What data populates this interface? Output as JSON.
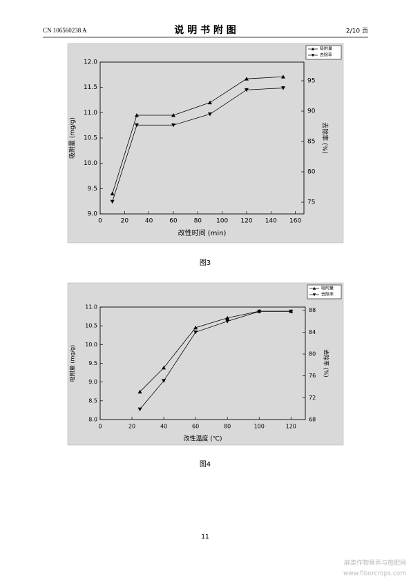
{
  "header": {
    "left": "CN 106560238 A",
    "title": "说 明 书 附 图",
    "right": "2/10 页"
  },
  "footer": {
    "page": "11"
  },
  "watermark": {
    "line1": "麻类作物营养与施肥网",
    "line2": "www.fibercrops.com"
  },
  "chart_data": [
    {
      "type": "line",
      "caption": "图3",
      "x_label": "改性时间 (min)",
      "y_label": "吸附量 (mg/g)",
      "y2_label": "去除率 (%)",
      "x": [
        10,
        30,
        60,
        90,
        120,
        150
      ],
      "xlim": [
        0,
        167
      ],
      "xticks": [
        0,
        20,
        40,
        60,
        80,
        100,
        120,
        140,
        160
      ],
      "ylim": [
        9,
        12
      ],
      "yticks": [
        {
          "value": 9,
          "label": "9.0"
        },
        {
          "value": 9.5,
          "label": "9.5"
        },
        {
          "value": 10,
          "label": "10.0"
        },
        {
          "value": 10.5,
          "label": "10.5"
        },
        {
          "value": 11,
          "label": "11.0"
        },
        {
          "value": 11.5,
          "label": "11.5"
        },
        {
          "value": 12,
          "label": "12.0"
        }
      ],
      "y2lim": [
        73.07,
        98.07
      ],
      "y2ticks": [
        75,
        80,
        85,
        90,
        95
      ],
      "legend": "upper right",
      "series": [
        {
          "name": "吸附量",
          "color": "#000000",
          "values": [
            9.4,
            10.95,
            10.95,
            11.2,
            11.67,
            11.71
          ]
        },
        {
          "name": "去除率",
          "color": "#000000",
          "axis": "y2",
          "values": [
            75.1,
            87.7,
            87.7,
            89.5,
            93.5,
            93.8
          ]
        }
      ]
    },
    {
      "type": "line",
      "caption": "图4",
      "x_label": "改性温度 (℃)",
      "y_label": "吸附量 (mg/g)",
      "y2_label": "去除率 (%)",
      "x": [
        25,
        40,
        60,
        80,
        100,
        120
      ],
      "xlim": [
        0,
        129
      ],
      "xticks": [
        0,
        20,
        40,
        60,
        80,
        100,
        120
      ],
      "ylim": [
        8,
        11
      ],
      "yticks": [
        {
          "value": 8,
          "label": "8.0"
        },
        {
          "value": 8.5,
          "label": "8.5"
        },
        {
          "value": 9,
          "label": "9.0"
        },
        {
          "value": 9.5,
          "label": "9.5"
        },
        {
          "value": 10,
          "label": "10.0"
        },
        {
          "value": 10.5,
          "label": "10.5"
        },
        {
          "value": 11,
          "label": "11.0"
        }
      ],
      "y2lim": [
        68,
        88.6
      ],
      "y2ticks": [
        68,
        72,
        76,
        80,
        84,
        88
      ],
      "legend": "upper right",
      "series": [
        {
          "name": "吸附量",
          "color": "#000000",
          "values": [
            8.74,
            9.38,
            10.45,
            10.71,
            10.89,
            10.89
          ]
        },
        {
          "name": "去除率",
          "color": "#000000",
          "axis": "y2",
          "values": [
            69.9,
            75.1,
            84.0,
            86.0,
            87.8,
            87.8
          ]
        }
      ]
    }
  ]
}
